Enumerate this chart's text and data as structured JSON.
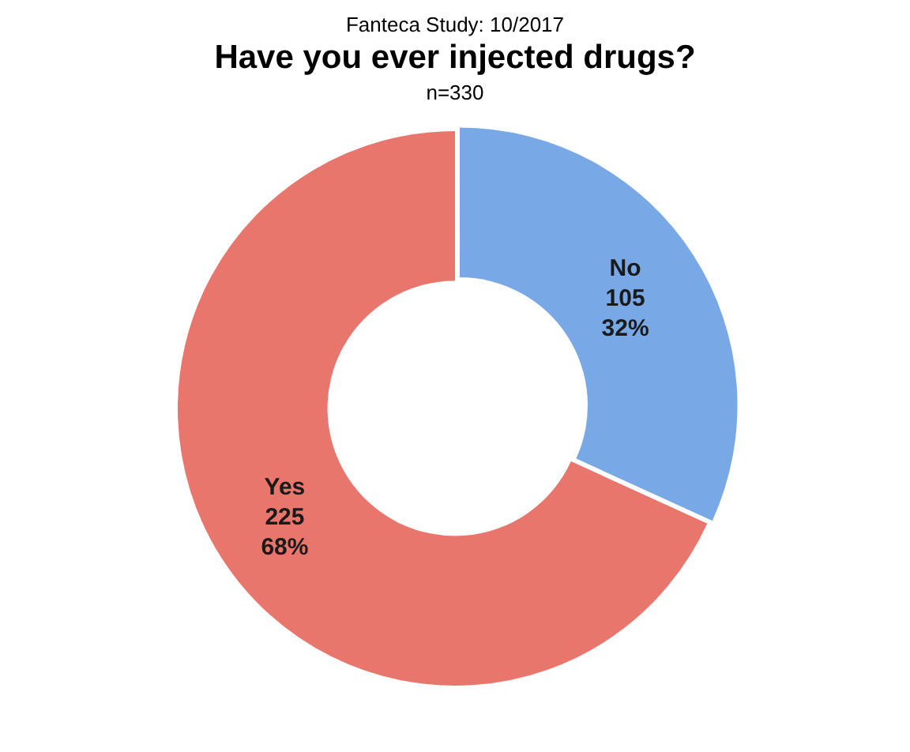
{
  "chart_data": {
    "type": "donut",
    "title": "Have you ever injected drugs?",
    "subtitle": "n=330",
    "annotations": [
      "Fanteca Study: 10/2017"
    ],
    "categories": [
      "No",
      "Yes"
    ],
    "values": [
      105,
      225
    ],
    "colors": [
      "#78a9e6",
      "#e8766c"
    ],
    "value_labels": [
      "105\n32%",
      "225\n68%"
    ],
    "legend": false
  }
}
